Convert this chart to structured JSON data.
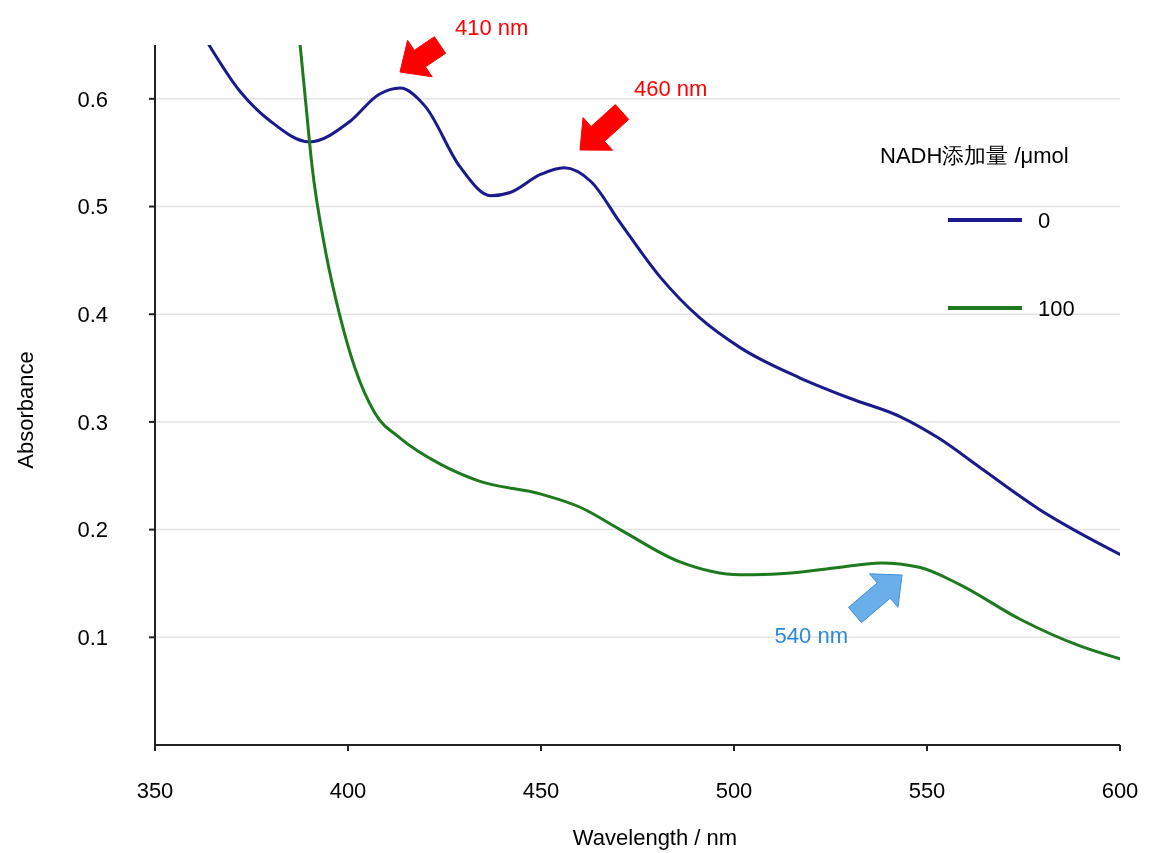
{
  "chart_data": {
    "type": "line",
    "xlabel": "Wavelength / nm",
    "ylabel": "Absorbance",
    "legend_title": "NADH添加量 /μmol",
    "legend": "right",
    "grid": "y",
    "line_style": "solid",
    "marker": "none",
    "xlim": [
      350,
      600
    ],
    "xticks": [
      350,
      400,
      450,
      500,
      550,
      600
    ],
    "ylim": [
      0,
      0.65
    ],
    "yticks": [
      0.1,
      0.2,
      0.3,
      0.4,
      0.5,
      0.6
    ],
    "series": [
      {
        "name": "0",
        "color": "#1a1a8c",
        "x": [
          364,
          372,
          380,
          390,
          400.5,
          408,
          413.5,
          420,
          429,
          437,
          442,
          450,
          456,
          463,
          470.5,
          481,
          491,
          501.6,
          517,
          530,
          543,
          553,
          564,
          579,
          600
        ],
        "values": [
          0.65,
          0.607,
          0.579,
          0.56,
          0.579,
          0.604,
          0.61,
          0.593,
          0.537,
          0.51,
          0.513,
          0.53,
          0.536,
          0.523,
          0.485,
          0.434,
          0.397,
          0.369,
          0.341,
          0.322,
          0.305,
          0.285,
          0.257,
          0.219,
          0.177
        ]
      },
      {
        "name": "100",
        "color": "#1e7a1e",
        "x": [
          387.6,
          388.9,
          390.7,
          394,
          398,
          401.8,
          407,
          413.5,
          423.8,
          434,
          450,
          460,
          470.5,
          486,
          501.6,
          512,
          527.5,
          538,
          548,
          558.5,
          574,
          589.6,
          600
        ],
        "values": [
          0.65,
          0.602,
          0.537,
          0.462,
          0.397,
          0.35,
          0.308,
          0.285,
          0.261,
          0.245,
          0.233,
          0.221,
          0.2,
          0.17,
          0.158,
          0.159,
          0.165,
          0.169,
          0.165,
          0.149,
          0.117,
          0.092,
          0.08
        ]
      }
    ],
    "annotations": [
      "410 nm",
      "460 nm",
      "540 nm"
    ]
  }
}
